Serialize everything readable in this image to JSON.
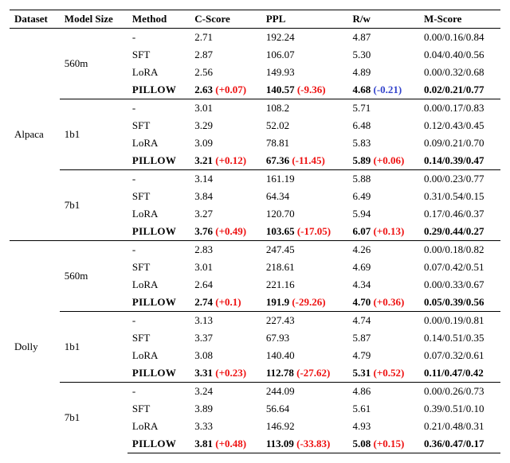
{
  "columns": {
    "dataset": "Dataset",
    "model_size": "Model Size",
    "method": "Method",
    "c_score": "C-Score",
    "ppl": "PPL",
    "rw": "R/w",
    "m_score": "M-Score"
  },
  "method_labels": {
    "none": "-",
    "sft": "SFT",
    "lora": "LoRA",
    "pillow": "PILLOW"
  },
  "datasets": [
    {
      "name": "Alpaca",
      "sizes": [
        {
          "size": "560m",
          "rows": [
            {
              "method": "none",
              "c": "2.71",
              "ppl": "192.24",
              "rw": "4.87",
              "m": "0.00/0.16/0.84"
            },
            {
              "method": "sft",
              "c": "2.87",
              "ppl": "106.07",
              "rw": "5.30",
              "m": "0.04/0.40/0.56"
            },
            {
              "method": "lora",
              "c": "2.56",
              "ppl": "149.93",
              "rw": "4.89",
              "m": "0.00/0.32/0.68"
            },
            {
              "method": "pillow",
              "c": "2.63",
              "c_d": "(+0.07)",
              "c_dir": "pos",
              "ppl": "140.57",
              "ppl_d": "(-9.36)",
              "ppl_dir": "pos",
              "rw": "4.68",
              "rw_d": "(-0.21)",
              "rw_dir": "neg",
              "m": "0.02/0.21/0.77"
            }
          ]
        },
        {
          "size": "1b1",
          "rows": [
            {
              "method": "none",
              "c": "3.01",
              "ppl": "108.2",
              "rw": "5.71",
              "m": "0.00/0.17/0.83"
            },
            {
              "method": "sft",
              "c": "3.29",
              "ppl": "52.02",
              "rw": "6.48",
              "m": "0.12/0.43/0.45"
            },
            {
              "method": "lora",
              "c": "3.09",
              "ppl": "78.81",
              "rw": "5.83",
              "m": "0.09/0.21/0.70"
            },
            {
              "method": "pillow",
              "c": "3.21",
              "c_d": "(+0.12)",
              "c_dir": "pos",
              "ppl": "67.36",
              "ppl_d": "(-11.45)",
              "ppl_dir": "pos",
              "rw": "5.89",
              "rw_d": "(+0.06)",
              "rw_dir": "pos",
              "m": "0.14/0.39/0.47"
            }
          ]
        },
        {
          "size": "7b1",
          "rows": [
            {
              "method": "none",
              "c": "3.14",
              "ppl": "161.19",
              "rw": "5.88",
              "m": "0.00/0.23/0.77"
            },
            {
              "method": "sft",
              "c": "3.84",
              "ppl": "64.34",
              "rw": "6.49",
              "m": "0.31/0.54/0.15"
            },
            {
              "method": "lora",
              "c": "3.27",
              "ppl": "120.70",
              "rw": "5.94",
              "m": "0.17/0.46/0.37"
            },
            {
              "method": "pillow",
              "c": "3.76",
              "c_d": "(+0.49)",
              "c_dir": "pos",
              "ppl": "103.65",
              "ppl_d": "(-17.05)",
              "ppl_dir": "pos",
              "rw": "6.07",
              "rw_d": "(+0.13)",
              "rw_dir": "pos",
              "m": "0.29/0.44/0.27"
            }
          ]
        }
      ]
    },
    {
      "name": "Dolly",
      "sizes": [
        {
          "size": "560m",
          "rows": [
            {
              "method": "none",
              "c": "2.83",
              "ppl": "247.45",
              "rw": "4.26",
              "m": "0.00/0.18/0.82"
            },
            {
              "method": "sft",
              "c": "3.01",
              "ppl": "218.61",
              "rw": "4.69",
              "m": "0.07/0.42/0.51"
            },
            {
              "method": "lora",
              "c": "2.64",
              "ppl": "221.16",
              "rw": "4.34",
              "m": "0.00/0.33/0.67"
            },
            {
              "method": "pillow",
              "c": "2.74",
              "c_d": "(+0.1)",
              "c_dir": "pos",
              "ppl": "191.9",
              "ppl_d": "(-29.26)",
              "ppl_dir": "pos",
              "rw": "4.70",
              "rw_d": "(+0.36)",
              "rw_dir": "pos",
              "m": "0.05/0.39/0.56"
            }
          ]
        },
        {
          "size": "1b1",
          "rows": [
            {
              "method": "none",
              "c": "3.13",
              "ppl": "227.43",
              "rw": "4.74",
              "m": "0.00/0.19/0.81"
            },
            {
              "method": "sft",
              "c": "3.37",
              "ppl": "67.93",
              "rw": "5.87",
              "m": "0.14/0.51/0.35"
            },
            {
              "method": "lora",
              "c": "3.08",
              "ppl": "140.40",
              "rw": "4.79",
              "m": "0.07/0.32/0.61"
            },
            {
              "method": "pillow",
              "c": "3.31",
              "c_d": "(+0.23)",
              "c_dir": "pos",
              "ppl": "112.78",
              "ppl_d": "(-27.62)",
              "ppl_dir": "pos",
              "rw": "5.31",
              "rw_d": "(+0.52)",
              "rw_dir": "pos",
              "m": "0.11/0.47/0.42"
            }
          ]
        },
        {
          "size": "7b1",
          "rows": [
            {
              "method": "none",
              "c": "3.24",
              "ppl": "244.09",
              "rw": "4.86",
              "m": "0.00/0.26/0.73"
            },
            {
              "method": "sft",
              "c": "3.89",
              "ppl": "56.64",
              "rw": "5.61",
              "m": "0.39/0.51/0.10"
            },
            {
              "method": "lora",
              "c": "3.33",
              "ppl": "146.92",
              "rw": "4.93",
              "m": "0.21/0.48/0.31"
            },
            {
              "method": "pillow",
              "c": "3.81",
              "c_d": "(+0.48)",
              "c_dir": "pos",
              "ppl": "113.09",
              "ppl_d": "(-33.83)",
              "ppl_dir": "pos",
              "rw": "5.08",
              "rw_d": "(+0.15)",
              "rw_dir": "pos",
              "m": "0.36/0.47/0.17"
            }
          ]
        }
      ]
    }
  ]
}
